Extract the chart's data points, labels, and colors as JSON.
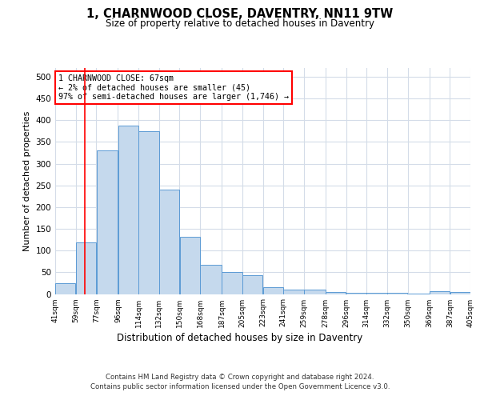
{
  "title_line1": "1, CHARNWOOD CLOSE, DAVENTRY, NN11 9TW",
  "title_line2": "Size of property relative to detached houses in Daventry",
  "xlabel": "Distribution of detached houses by size in Daventry",
  "ylabel": "Number of detached properties",
  "bar_color": "#c5d9ed",
  "bar_edge_color": "#5b9bd5",
  "bar_left_edges": [
    41,
    59,
    77,
    96,
    114,
    132,
    150,
    168,
    187,
    205,
    223,
    241,
    259,
    278,
    296,
    314,
    332,
    350,
    369,
    387
  ],
  "bar_widths": [
    18,
    18,
    19,
    18,
    18,
    18,
    18,
    19,
    18,
    18,
    18,
    18,
    19,
    18,
    18,
    18,
    18,
    19,
    18,
    18
  ],
  "bar_heights": [
    25,
    118,
    330,
    388,
    375,
    240,
    132,
    68,
    50,
    43,
    15,
    10,
    10,
    5,
    2,
    2,
    2,
    1,
    6,
    5
  ],
  "tick_labels": [
    "41sqm",
    "59sqm",
    "77sqm",
    "96sqm",
    "114sqm",
    "132sqm",
    "150sqm",
    "168sqm",
    "187sqm",
    "205sqm",
    "223sqm",
    "241sqm",
    "259sqm",
    "278sqm",
    "296sqm",
    "314sqm",
    "332sqm",
    "350sqm",
    "369sqm",
    "387sqm",
    "405sqm"
  ],
  "ylim": [
    0,
    520
  ],
  "yticks": [
    0,
    50,
    100,
    150,
    200,
    250,
    300,
    350,
    400,
    450,
    500
  ],
  "property_line_x": 67,
  "annotation_text": "1 CHARNWOOD CLOSE: 67sqm\n← 2% of detached houses are smaller (45)\n97% of semi-detached houses are larger (1,746) →",
  "annotation_box_color": "white",
  "annotation_box_edge": "red",
  "footer_line1": "Contains HM Land Registry data © Crown copyright and database right 2024.",
  "footer_line2": "Contains public sector information licensed under the Open Government Licence v3.0.",
  "background_color": "white",
  "grid_color": "#d4dce8"
}
